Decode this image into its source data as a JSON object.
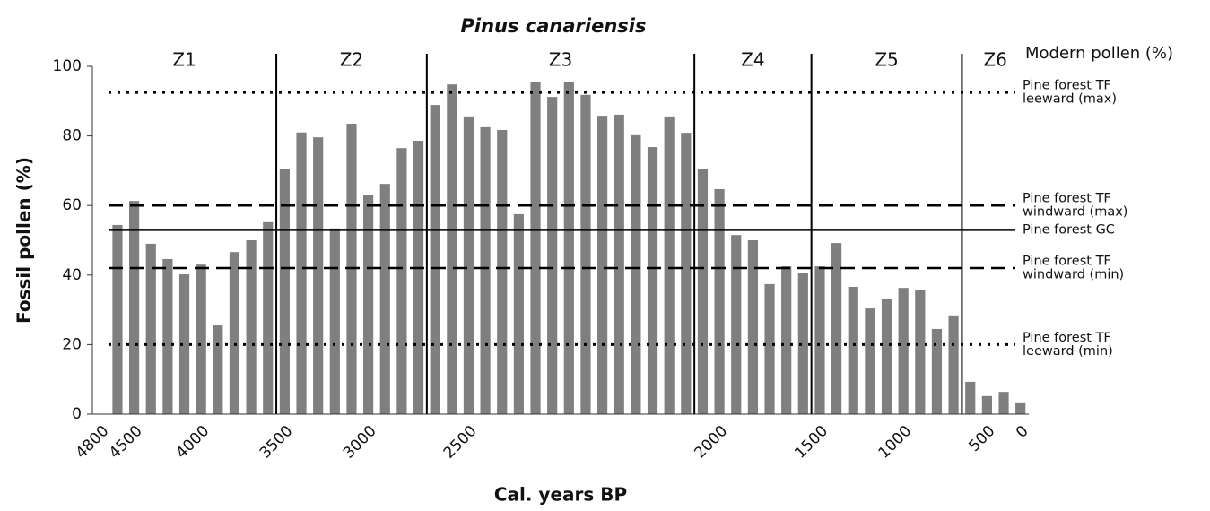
{
  "chart_data": {
    "type": "bar",
    "title": "Pinus canariensis",
    "y_label": "Fossil pollen (%)",
    "x_label": "Cal. years BP",
    "right_heading": "Modern pollen (%)",
    "color": "#7f7f7f",
    "categories": [
      "4800",
      null,
      "4500",
      null,
      null,
      null,
      "4000",
      null,
      null,
      null,
      null,
      "3500",
      null,
      null,
      null,
      null,
      "3000",
      null,
      null,
      null,
      null,
      null,
      "2500",
      null,
      null,
      null,
      null,
      null,
      null,
      null,
      null,
      null,
      null,
      null,
      null,
      null,
      null,
      "2000",
      null,
      null,
      null,
      null,
      null,
      "1500",
      null,
      null,
      null,
      null,
      "1000",
      null,
      null,
      null,
      null,
      "500",
      null,
      "0"
    ],
    "values": [
      null,
      54.4,
      61.3,
      49,
      44.6,
      40.2,
      43,
      25.5,
      46.6,
      50,
      55.2,
      70.6,
      81,
      79.6,
      53.4,
      83.5,
      62.9,
      66.2,
      76.5,
      78.6,
      88.9,
      94.8,
      85.6,
      82.5,
      81.7,
      57.5,
      95.4,
      91.2,
      95.4,
      91.8,
      85.8,
      86.1,
      80.2,
      76.8,
      85.6,
      80.9,
      70.4,
      64.7,
      51.5,
      50,
      37.4,
      42.5,
      40.5,
      42.5,
      49.2,
      36.6,
      30.4,
      33,
      36.3,
      35.8,
      24.5,
      28.4,
      9.3,
      5.2,
      6.4,
      3.4
    ],
    "ylim": [
      0,
      100
    ],
    "yticks": [
      0,
      20,
      40,
      60,
      80,
      100
    ],
    "zones": [
      {
        "label": "Z1",
        "start": 0,
        "end": 11
      },
      {
        "label": "Z2",
        "start": 11,
        "end": 20
      },
      {
        "label": "Z3",
        "start": 20,
        "end": 36
      },
      {
        "label": "Z4",
        "start": 36,
        "end": 43
      },
      {
        "label": "Z5",
        "start": 43,
        "end": 52
      },
      {
        "label": "Z6",
        "start": 52,
        "end": 56
      }
    ],
    "reference_lines": [
      {
        "label": [
          "Pine forest TF",
          "leeward (max)"
        ],
        "value": 92.5,
        "style": "dotted"
      },
      {
        "label": [
          "Pine forest TF",
          "windward (max)"
        ],
        "value": 60,
        "style": "dashed"
      },
      {
        "label": [
          "Pine forest GC"
        ],
        "value": 53,
        "style": "solid"
      },
      {
        "label": [
          "Pine forest TF",
          "windward (min)"
        ],
        "value": 42,
        "style": "dashed"
      },
      {
        "label": [
          "Pine forest TF",
          "leeward (min)"
        ],
        "value": 20,
        "style": "dotted"
      }
    ]
  }
}
